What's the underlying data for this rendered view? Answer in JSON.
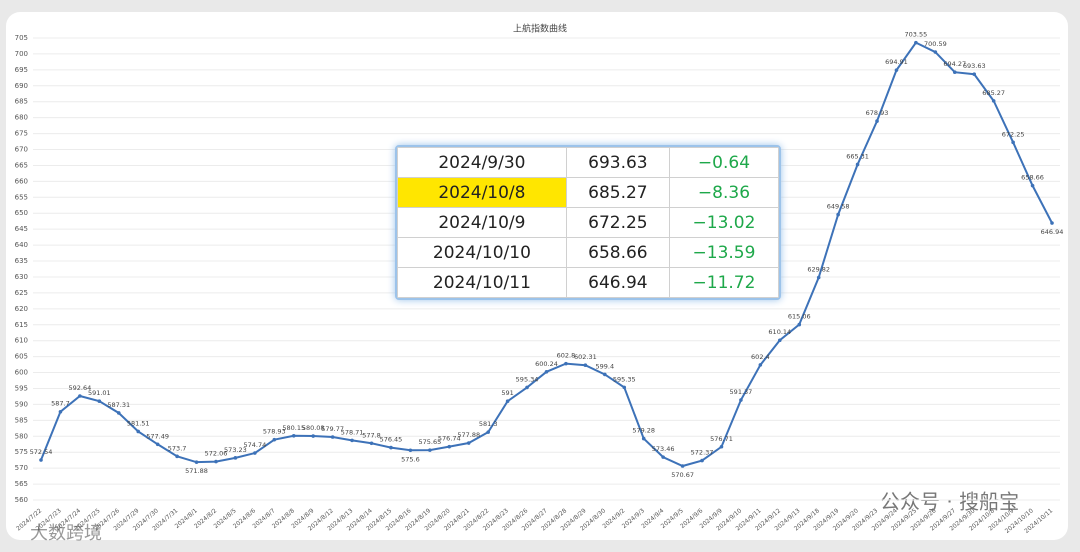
{
  "chart_data": {
    "type": "line",
    "title": "上航指数曲线",
    "categories": [
      "2024/7/22",
      "2024/7/23",
      "2024/7/24",
      "2024/7/25",
      "2024/7/26",
      "2024/7/29",
      "2024/7/30",
      "2024/7/31",
      "2024/8/1",
      "2024/8/2",
      "2024/8/5",
      "2024/8/6",
      "2024/8/7",
      "2024/8/8",
      "2024/8/9",
      "2024/8/12",
      "2024/8/13",
      "2024/8/14",
      "2024/8/15",
      "2024/8/16",
      "2024/8/19",
      "2024/8/20",
      "2024/8/21",
      "2024/8/22",
      "2024/8/23",
      "2024/8/26",
      "2024/8/27",
      "2024/8/28",
      "2024/8/29",
      "2024/8/30",
      "2024/9/2",
      "2024/9/3",
      "2024/9/4",
      "2024/9/5",
      "2024/9/6",
      "2024/9/9",
      "2024/9/10",
      "2024/9/11",
      "2024/9/12",
      "2024/9/13",
      "2024/9/18",
      "2024/9/19",
      "2024/9/20",
      "2024/9/23",
      "2024/9/24",
      "2024/9/25",
      "2024/9/26",
      "2024/9/27",
      "2024/9/30",
      "2024/10/8",
      "2024/10/9",
      "2024/10/10",
      "2024/10/11"
    ],
    "values": [
      572.54,
      587.7,
      592.64,
      591.01,
      587.31,
      581.51,
      577.49,
      573.7,
      571.88,
      572.06,
      573.23,
      574.74,
      578.93,
      580.15,
      580.08,
      579.77,
      578.71,
      577.8,
      576.45,
      575.6,
      575.65,
      576.74,
      577.88,
      581.3,
      591,
      595.34,
      600.24,
      602.8,
      602.31,
      599.4,
      595.35,
      579.28,
      573.46,
      570.67,
      572.37,
      576.71,
      591.37,
      602.4,
      610.14,
      615.06,
      629.82,
      649.58,
      665.31,
      678.93,
      694.91,
      703.55,
      700.59,
      694.27,
      693.63,
      685.27,
      672.25,
      658.66,
      646.94
    ],
    "color": "#3d72b8",
    "ylim": [
      560,
      705
    ],
    "yticks": [
      560,
      565,
      570,
      575,
      580,
      585,
      590,
      595,
      600,
      605,
      610,
      615,
      620,
      625,
      630,
      635,
      640,
      645,
      650,
      655,
      660,
      665,
      670,
      675,
      680,
      685,
      690,
      695,
      700,
      705
    ],
    "grid": true
  },
  "table": {
    "rows": [
      [
        "2024/9/30",
        "693.63",
        "−0.64"
      ],
      [
        "2024/10/8",
        "685.27",
        "−8.36"
      ],
      [
        "2024/10/9",
        "672.25",
        "−13.02"
      ],
      [
        "2024/10/10",
        "658.66",
        "−13.59"
      ],
      [
        "2024/10/11",
        "646.94",
        "−11.72"
      ]
    ],
    "highlight_row": 1
  },
  "watermarks": [
    "公众号 · 搜船宝",
    "大数跨境"
  ]
}
